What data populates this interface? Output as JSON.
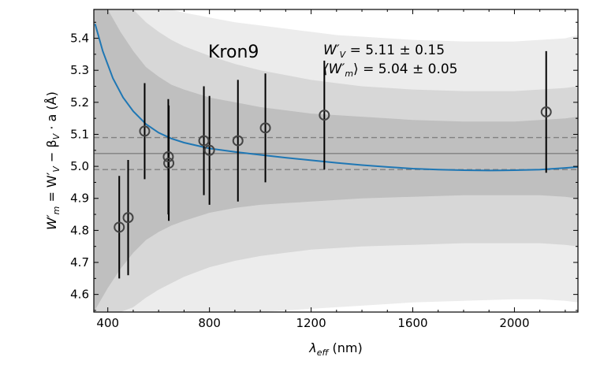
{
  "chart_data": {
    "type": "scatter",
    "title": "Kron9",
    "xlabel": "λ_eff (nm)",
    "ylabel": "W'_m = W'_V − β_V · a (Å)",
    "xlim": [
      345,
      2250
    ],
    "ylim": [
      4.545,
      5.49
    ],
    "xticks": [
      400,
      800,
      1200,
      1600,
      2000
    ],
    "yticks": [
      4.6,
      4.7,
      4.8,
      4.9,
      5.0,
      5.1,
      5.2,
      5.3,
      5.4
    ],
    "xtick_labels": [
      "400",
      "800",
      "1200",
      "1600",
      "2000"
    ],
    "ytick_labels": [
      "4.6",
      "4.7",
      "4.8",
      "4.9",
      "5.0",
      "5.1",
      "5.2",
      "5.3",
      "5.4"
    ],
    "annotations": {
      "star_name": "Kron9",
      "line1_symbol": "W′",
      "line1_sub": "V",
      "line1_value": " = 5.11 ± 0.15",
      "line2_open": "⟨W′",
      "line2_sub": "m",
      "line2_close": "⟩",
      "line2_value": " = 5.04 ± 0.05"
    },
    "xlabel_parts": {
      "symbol": "λ",
      "sub": "eff",
      "unit": " (nm)"
    },
    "ylabel_parts": {
      "a": "W′",
      "a_sub": "m",
      "b": " = W′",
      "b_sub": "V",
      "c": " − β",
      "c_sub": "V",
      "d": " · a (Å)"
    },
    "mean_line": 5.04,
    "mean_band": [
      4.99,
      5.09
    ],
    "points": [
      {
        "x": 445,
        "y": 4.81,
        "err": 0.16
      },
      {
        "x": 480,
        "y": 4.84,
        "err": 0.18
      },
      {
        "x": 545,
        "y": 5.11,
        "err": 0.15
      },
      {
        "x": 638,
        "y": 5.03,
        "err": 0.18
      },
      {
        "x": 640,
        "y": 5.01,
        "err": 0.18
      },
      {
        "x": 778,
        "y": 5.08,
        "err": 0.17
      },
      {
        "x": 800,
        "y": 5.05,
        "err": 0.17
      },
      {
        "x": 912,
        "y": 5.08,
        "err": 0.19
      },
      {
        "x": 1020,
        "y": 5.12,
        "err": 0.17
      },
      {
        "x": 1252,
        "y": 5.16,
        "err": 0.17
      },
      {
        "x": 2125,
        "y": 5.17,
        "err": 0.19
      }
    ],
    "fit_curve": {
      "x": [
        350,
        380,
        420,
        460,
        500,
        550,
        600,
        650,
        700,
        800,
        900,
        1000,
        1100,
        1200,
        1300,
        1400,
        1500,
        1600,
        1700,
        1800,
        1900,
        2000,
        2100,
        2200,
        2250
      ],
      "y": [
        5.445,
        5.36,
        5.275,
        5.215,
        5.172,
        5.132,
        5.105,
        5.087,
        5.074,
        5.056,
        5.045,
        5.036,
        5.027,
        5.019,
        5.011,
        5.004,
        4.998,
        4.993,
        4.99,
        4.988,
        4.987,
        4.988,
        4.99,
        4.995,
        4.998
      ]
    },
    "confidence_bands": [
      {
        "level": "3-sigma",
        "color": "#ececec",
        "x": [
          345,
          400,
          450,
          500,
          550,
          600,
          650,
          700,
          800,
          900,
          1000,
          1100,
          1200,
          1300,
          1400,
          1600,
          1800,
          2000,
          2100,
          2200,
          2250
        ],
        "upper": [
          5.49,
          5.49,
          5.49,
          5.49,
          5.49,
          5.49,
          5.49,
          5.48,
          5.465,
          5.45,
          5.44,
          5.43,
          5.42,
          5.41,
          5.405,
          5.395,
          5.39,
          5.39,
          5.395,
          5.4,
          5.41
        ],
        "lower": [
          4.545,
          4.545,
          4.545,
          4.545,
          4.545,
          4.545,
          4.545,
          4.545,
          4.545,
          4.545,
          4.545,
          4.55,
          4.555,
          4.56,
          4.565,
          4.575,
          4.58,
          4.585,
          4.585,
          4.58,
          4.575
        ]
      },
      {
        "level": "2-sigma",
        "color": "#d7d7d7",
        "x": [
          345,
          400,
          450,
          500,
          550,
          600,
          650,
          700,
          800,
          900,
          1000,
          1100,
          1200,
          1300,
          1400,
          1600,
          1800,
          2000,
          2100,
          2200,
          2250
        ],
        "upper": [
          5.49,
          5.49,
          5.49,
          5.49,
          5.45,
          5.42,
          5.395,
          5.375,
          5.345,
          5.32,
          5.3,
          5.285,
          5.27,
          5.26,
          5.25,
          5.24,
          5.235,
          5.235,
          5.24,
          5.245,
          5.25
        ],
        "lower": [
          4.545,
          4.545,
          4.545,
          4.56,
          4.59,
          4.615,
          4.635,
          4.655,
          4.685,
          4.705,
          4.72,
          4.73,
          4.74,
          4.745,
          4.75,
          4.755,
          4.76,
          4.76,
          4.76,
          4.755,
          4.75
        ]
      },
      {
        "level": "1-sigma",
        "color": "#bfbfbf",
        "x": [
          345,
          400,
          450,
          500,
          550,
          600,
          650,
          700,
          800,
          900,
          1000,
          1100,
          1200,
          1300,
          1400,
          1600,
          1800,
          2000,
          2100,
          2200,
          2250
        ],
        "upper": [
          5.49,
          5.49,
          5.42,
          5.36,
          5.31,
          5.28,
          5.255,
          5.24,
          5.215,
          5.2,
          5.185,
          5.175,
          5.165,
          5.16,
          5.155,
          5.145,
          5.14,
          5.14,
          5.145,
          5.15,
          5.155
        ],
        "lower": [
          4.545,
          4.62,
          4.68,
          4.73,
          4.77,
          4.795,
          4.815,
          4.83,
          4.855,
          4.87,
          4.88,
          4.885,
          4.89,
          4.895,
          4.9,
          4.905,
          4.91,
          4.91,
          4.91,
          4.905,
          4.9
        ]
      }
    ],
    "colors": {
      "fit": "#1f77b4",
      "mean": "#808080",
      "band_edges": "#808080",
      "points": "#444444",
      "errorbars": "#000000"
    }
  }
}
